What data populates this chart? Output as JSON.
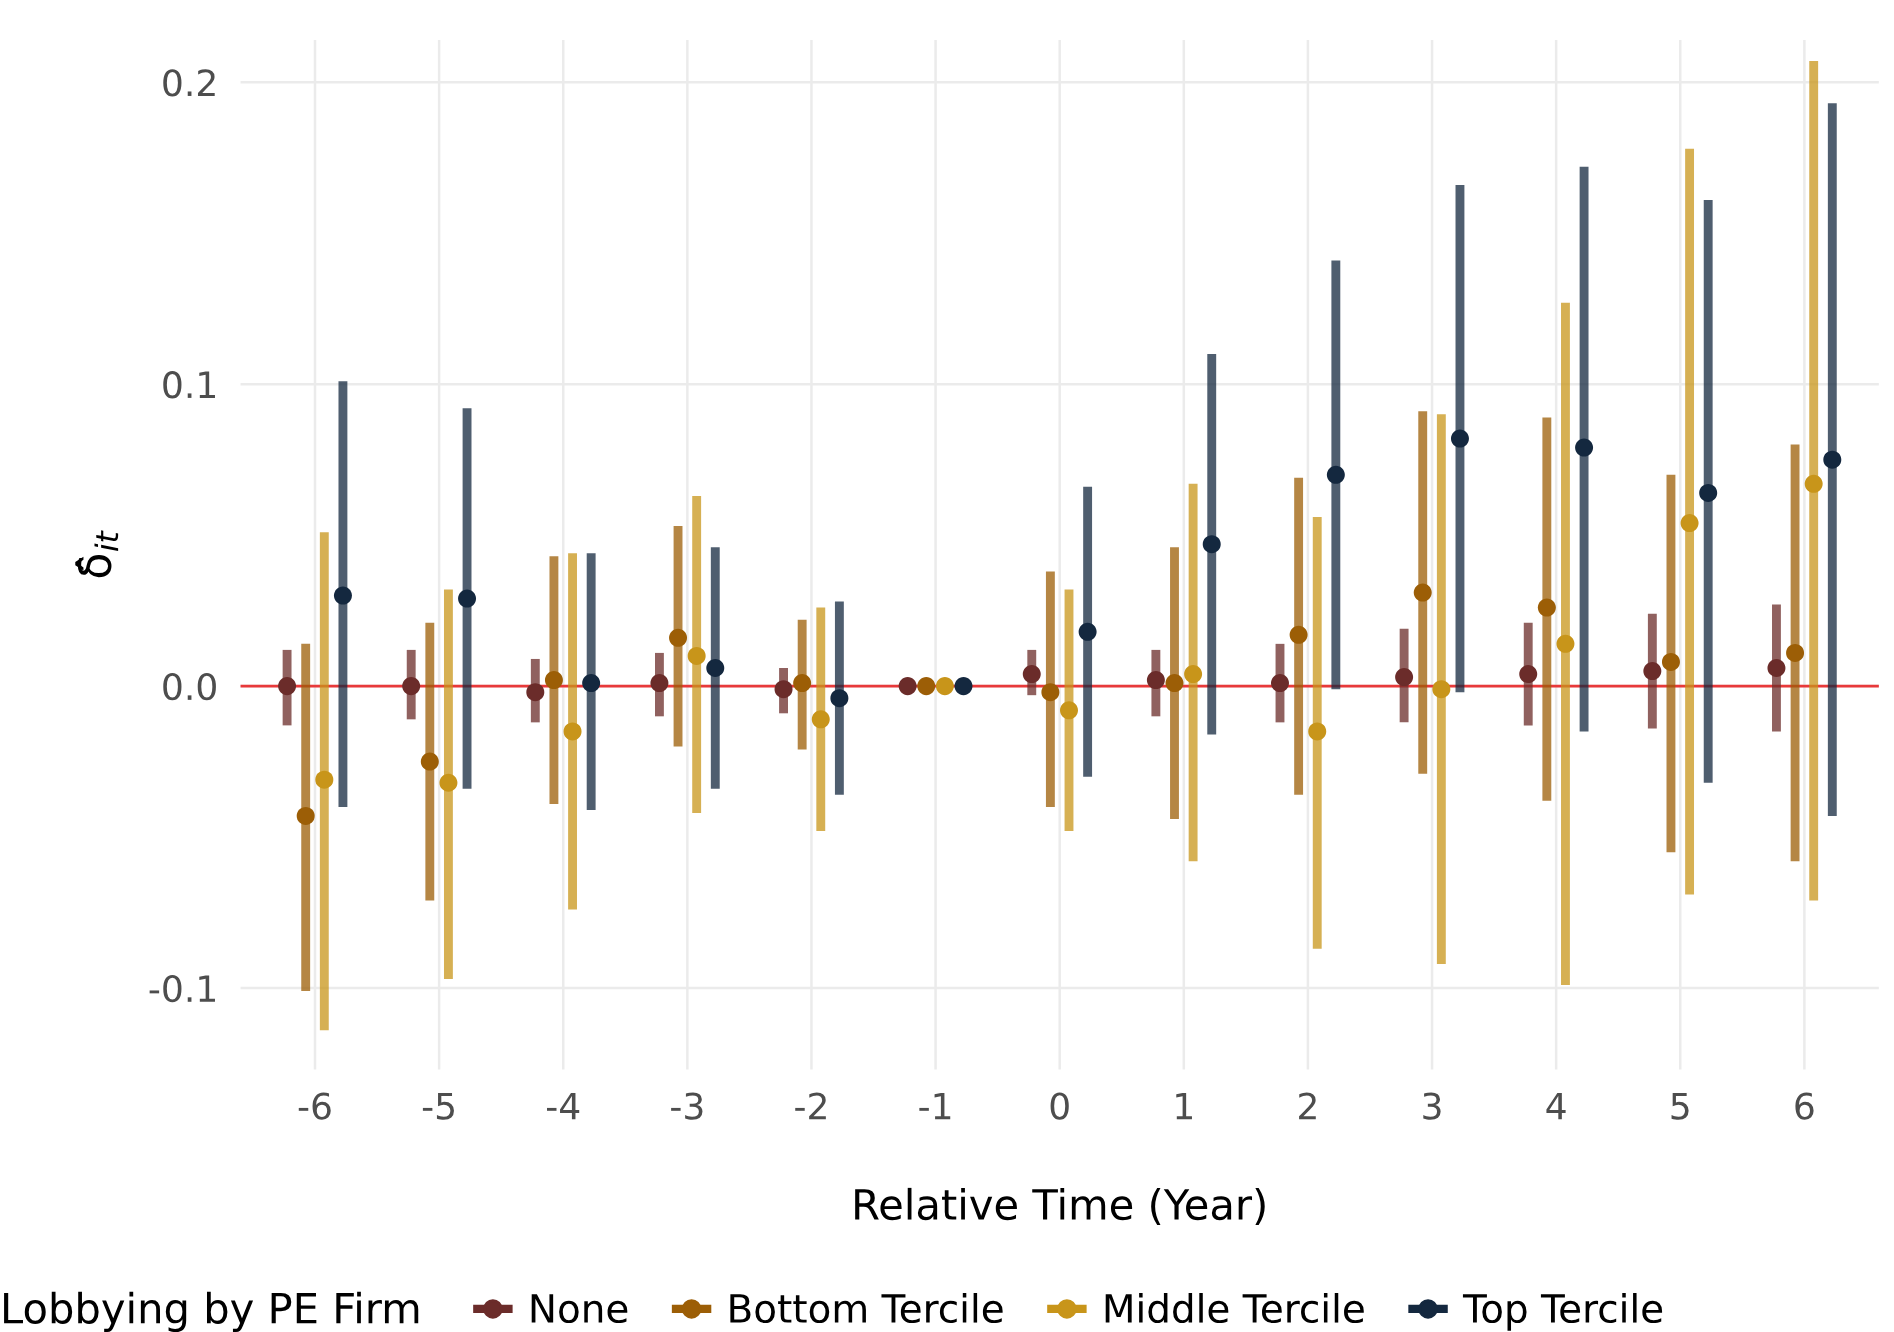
{
  "chart_data": {
    "type": "scatter",
    "xlabel": "Relative Time (Year)",
    "ylabel": "δ̂$_{it}$",
    "legend_title": "Lobbying by PE Firm",
    "categories": [
      "-6",
      "-5",
      "-4",
      "-3",
      "-2",
      "-1",
      "0",
      "1",
      "2",
      "3",
      "4",
      "5",
      "6"
    ],
    "series": [
      {
        "name": "None",
        "color": "#6b2c2a",
        "values": [
          0.0,
          0.0,
          -0.002,
          0.001,
          -0.001,
          0.0,
          0.004,
          0.002,
          0.001,
          0.003,
          0.004,
          0.005,
          0.006
        ],
        "errors": [
          [
            -0.013,
            0.012
          ],
          [
            -0.011,
            0.012
          ],
          [
            -0.012,
            0.009
          ],
          [
            -0.01,
            0.011
          ],
          [
            -0.009,
            0.006
          ],
          null,
          [
            -0.003,
            0.012
          ],
          [
            -0.01,
            0.012
          ],
          [
            -0.012,
            0.014
          ],
          [
            -0.012,
            0.019
          ],
          [
            -0.013,
            0.021
          ],
          [
            -0.014,
            0.024
          ],
          [
            -0.015,
            0.027
          ]
        ]
      },
      {
        "name": "Bottom Tercile",
        "color": "#9c5e06",
        "values": [
          -0.043,
          -0.025,
          0.002,
          0.016,
          0.001,
          0.0,
          -0.002,
          0.001,
          0.017,
          0.031,
          0.026,
          0.008,
          0.011
        ],
        "errors": [
          [
            -0.101,
            0.014
          ],
          [
            -0.071,
            0.021
          ],
          [
            -0.039,
            0.043
          ],
          [
            -0.02,
            0.053
          ],
          [
            -0.021,
            0.022
          ],
          null,
          [
            -0.04,
            0.038
          ],
          [
            -0.044,
            0.046
          ],
          [
            -0.036,
            0.069
          ],
          [
            -0.029,
            0.091
          ],
          [
            -0.038,
            0.089
          ],
          [
            -0.055,
            0.07
          ],
          [
            -0.058,
            0.08
          ]
        ]
      },
      {
        "name": "Middle Tercile",
        "color": "#c8951a",
        "values": [
          -0.031,
          -0.032,
          -0.015,
          0.01,
          -0.011,
          0.0,
          -0.008,
          0.004,
          -0.015,
          -0.001,
          0.014,
          0.054,
          0.067
        ],
        "errors": [
          [
            -0.114,
            0.051
          ],
          [
            -0.097,
            0.032
          ],
          [
            -0.074,
            0.044
          ],
          [
            -0.042,
            0.063
          ],
          [
            -0.048,
            0.026
          ],
          null,
          [
            -0.048,
            0.032
          ],
          [
            -0.058,
            0.067
          ],
          [
            -0.087,
            0.056
          ],
          [
            -0.092,
            0.09
          ],
          [
            -0.099,
            0.127
          ],
          [
            -0.069,
            0.178
          ],
          [
            -0.071,
            0.207
          ]
        ]
      },
      {
        "name": "Top Tercile",
        "color": "#14283f",
        "values": [
          0.03,
          0.029,
          0.001,
          0.006,
          -0.004,
          0.0,
          0.018,
          0.047,
          0.07,
          0.082,
          0.079,
          0.064,
          0.075
        ],
        "errors": [
          [
            -0.04,
            0.101
          ],
          [
            -0.034,
            0.092
          ],
          [
            -0.041,
            0.044
          ],
          [
            -0.034,
            0.046
          ],
          [
            -0.036,
            0.028
          ],
          null,
          [
            -0.03,
            0.066
          ],
          [
            -0.016,
            0.11
          ],
          [
            -0.001,
            0.141
          ],
          [
            -0.002,
            0.166
          ],
          [
            -0.015,
            0.172
          ],
          [
            -0.032,
            0.161
          ],
          [
            -0.043,
            0.193
          ]
        ]
      }
    ],
    "ylim": [
      -0.127,
      0.214
    ],
    "yticks": [
      {
        "value": -0.1,
        "label": "-0.1"
      },
      {
        "value": 0.0,
        "label": "0.0"
      },
      {
        "value": 0.1,
        "label": "0.1"
      },
      {
        "value": 0.2,
        "label": "0.2"
      }
    ],
    "ref_lines": [
      {
        "axis": "y",
        "value": 0,
        "color": "#e8393a"
      }
    ],
    "grid": true,
    "legend": "bottom",
    "marker": "circle"
  }
}
